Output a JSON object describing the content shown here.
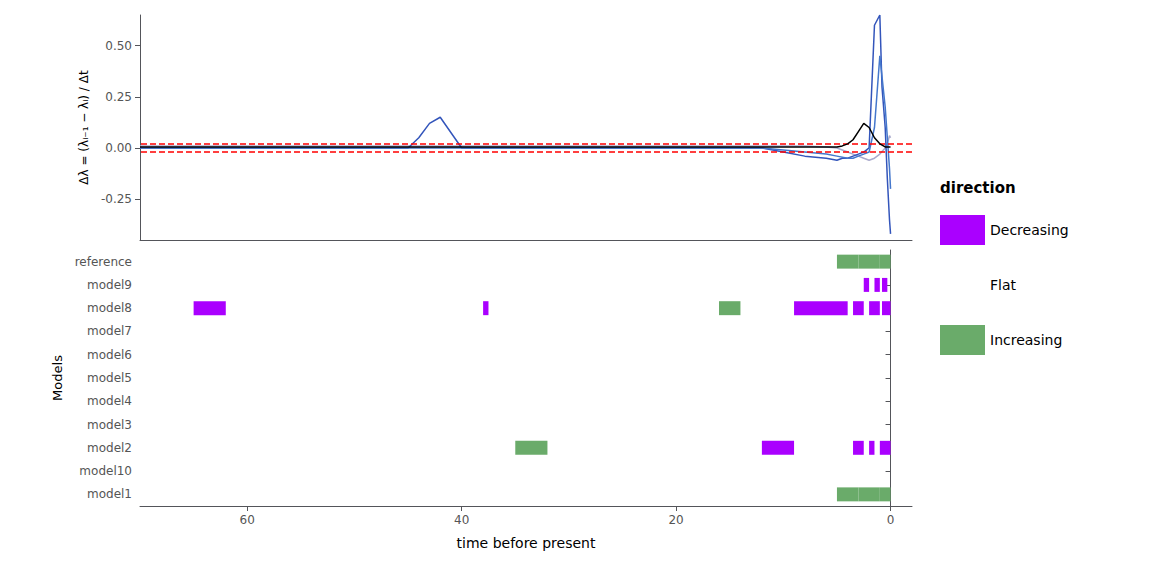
{
  "chart_data": [
    {
      "type": "line",
      "ylabel": "Δλ = (λᵢ₋₁ − λᵢ) / Δt",
      "xlim": [
        70,
        -2
      ],
      "xticks": [],
      "ylim": [
        -0.45,
        0.65
      ],
      "yticks": [
        -0.25,
        {
          "value": 0.0,
          "label": "0.00"
        },
        0.25,
        {
          "value": 0.5,
          "label": "0.50"
        }
      ],
      "grid": false,
      "tick_labels": "y",
      "series": [
        {
          "color": "#AAAACC",
          "x": [
            70,
            60,
            50,
            40,
            30,
            20,
            15,
            12,
            10,
            8,
            6,
            5,
            4.5,
            4,
            3.5,
            3,
            2.5,
            2,
            1.5,
            1,
            0.5,
            0.2,
            0.1,
            0
          ],
          "values": [
            0.01,
            0.01,
            0.01,
            0.01,
            0.01,
            0.01,
            0.01,
            0.01,
            0.01,
            0.01,
            0.005,
            0.0,
            -0.01,
            -0.02,
            -0.03,
            -0.04,
            -0.05,
            -0.06,
            -0.05,
            -0.03,
            0.0,
            0.04,
            0.06,
            0.05
          ]
        },
        {
          "color": "#3355BB",
          "x": [
            70,
            60,
            50,
            45,
            44,
            43,
            42,
            40,
            30,
            20,
            15,
            12,
            10,
            8,
            6,
            5,
            4.5,
            4,
            3.5,
            3,
            2.5,
            2,
            1.5,
            1,
            0.8,
            0.5,
            0.3,
            0.1,
            0
          ],
          "values": [
            0.0,
            0.0,
            0.0,
            0.0,
            0.05,
            0.12,
            0.15,
            0.0,
            0.0,
            0.0,
            0.0,
            0.0,
            -0.02,
            -0.04,
            -0.05,
            -0.06,
            -0.05,
            -0.05,
            -0.04,
            -0.03,
            -0.02,
            0.0,
            0.6,
            0.65,
            0.3,
            0.1,
            -0.15,
            -0.35,
            -0.42
          ]
        },
        {
          "color": "#4477CC",
          "x": [
            70,
            60,
            50,
            40,
            30,
            20,
            15,
            12,
            10,
            8,
            6,
            5,
            4,
            3.5,
            3,
            2.5,
            2,
            1.5,
            1,
            0.5,
            0.3,
            0.1,
            0
          ],
          "values": [
            0.0,
            0.0,
            0.0,
            0.0,
            0.0,
            0.0,
            0.0,
            0.0,
            -0.01,
            -0.02,
            -0.03,
            -0.04,
            -0.05,
            -0.05,
            -0.04,
            -0.03,
            -0.02,
            0.1,
            0.45,
            0.2,
            0.05,
            -0.1,
            -0.2
          ]
        },
        {
          "color": "#000000",
          "x": [
            70,
            60,
            50,
            40,
            30,
            20,
            15,
            12,
            10,
            8,
            6,
            5,
            4.5,
            4,
            3.5,
            3,
            2.5,
            2,
            1.5,
            1,
            0.5,
            0
          ],
          "values": [
            0.005,
            0.005,
            0.005,
            0.005,
            0.005,
            0.005,
            0.005,
            0.005,
            0.005,
            0.005,
            0.005,
            0.005,
            0.01,
            0.02,
            0.04,
            0.08,
            0.12,
            0.1,
            0.05,
            0.02,
            0.005,
            0.005
          ]
        }
      ],
      "reference_lines": [
        {
          "value": 0.02,
          "color": "red",
          "line_style": "dashed"
        },
        {
          "value": -0.02,
          "color": "red",
          "line_style": "dashed"
        }
      ]
    },
    {
      "type": "bar",
      "orientation": "horizontal",
      "xlabel": "time before present",
      "ylabel": "Models",
      "categories": [
        "reference",
        "model9",
        "model8",
        "model7",
        "model6",
        "model5",
        "model4",
        "model3",
        "model2",
        "model10",
        "model1"
      ],
      "xlim": [
        70,
        -2
      ],
      "xticks": [
        60,
        40,
        20,
        0
      ],
      "grid": false,
      "legend": "right",
      "legend_title": "direction",
      "series": [
        {
          "name": "Decreasing",
          "color": "#AA00FF"
        },
        {
          "name": "Flat",
          "color": "#FFFFFF"
        },
        {
          "name": "Increasing",
          "color": "#6AAB6A"
        }
      ],
      "segments": [
        {
          "category": "reference",
          "start": 5,
          "end": 3,
          "direction": "Increasing"
        },
        {
          "category": "reference",
          "start": 3,
          "end": 1,
          "direction": "Increasing"
        },
        {
          "category": "reference",
          "start": 1,
          "end": 0,
          "direction": "Increasing"
        },
        {
          "category": "model9",
          "start": 2.5,
          "end": 2.0,
          "direction": "Decreasing"
        },
        {
          "category": "model9",
          "start": 1.5,
          "end": 1.0,
          "direction": "Decreasing"
        },
        {
          "category": "model9",
          "start": 0.8,
          "end": 0.3,
          "direction": "Decreasing"
        },
        {
          "category": "model8",
          "start": 65,
          "end": 62,
          "direction": "Decreasing"
        },
        {
          "category": "model8",
          "start": 38,
          "end": 37.5,
          "direction": "Decreasing"
        },
        {
          "category": "model8",
          "start": 16,
          "end": 14,
          "direction": "Increasing"
        },
        {
          "category": "model8",
          "start": 9,
          "end": 4,
          "direction": "Decreasing"
        },
        {
          "category": "model8",
          "start": 3.5,
          "end": 2.5,
          "direction": "Decreasing"
        },
        {
          "category": "model8",
          "start": 2,
          "end": 1,
          "direction": "Decreasing"
        },
        {
          "category": "model8",
          "start": 0.8,
          "end": 0,
          "direction": "Decreasing"
        },
        {
          "category": "model2",
          "start": 35,
          "end": 32,
          "direction": "Increasing"
        },
        {
          "category": "model2",
          "start": 12,
          "end": 9,
          "direction": "Decreasing"
        },
        {
          "category": "model2",
          "start": 3.5,
          "end": 2.5,
          "direction": "Decreasing"
        },
        {
          "category": "model2",
          "start": 2.0,
          "end": 1.5,
          "direction": "Decreasing"
        },
        {
          "category": "model2",
          "start": 1.0,
          "end": 0,
          "direction": "Decreasing"
        },
        {
          "category": "model1",
          "start": 5,
          "end": 3,
          "direction": "Increasing"
        },
        {
          "category": "model1",
          "start": 3,
          "end": 1,
          "direction": "Increasing"
        },
        {
          "category": "model1",
          "start": 1,
          "end": 0,
          "direction": "Increasing"
        }
      ]
    }
  ]
}
